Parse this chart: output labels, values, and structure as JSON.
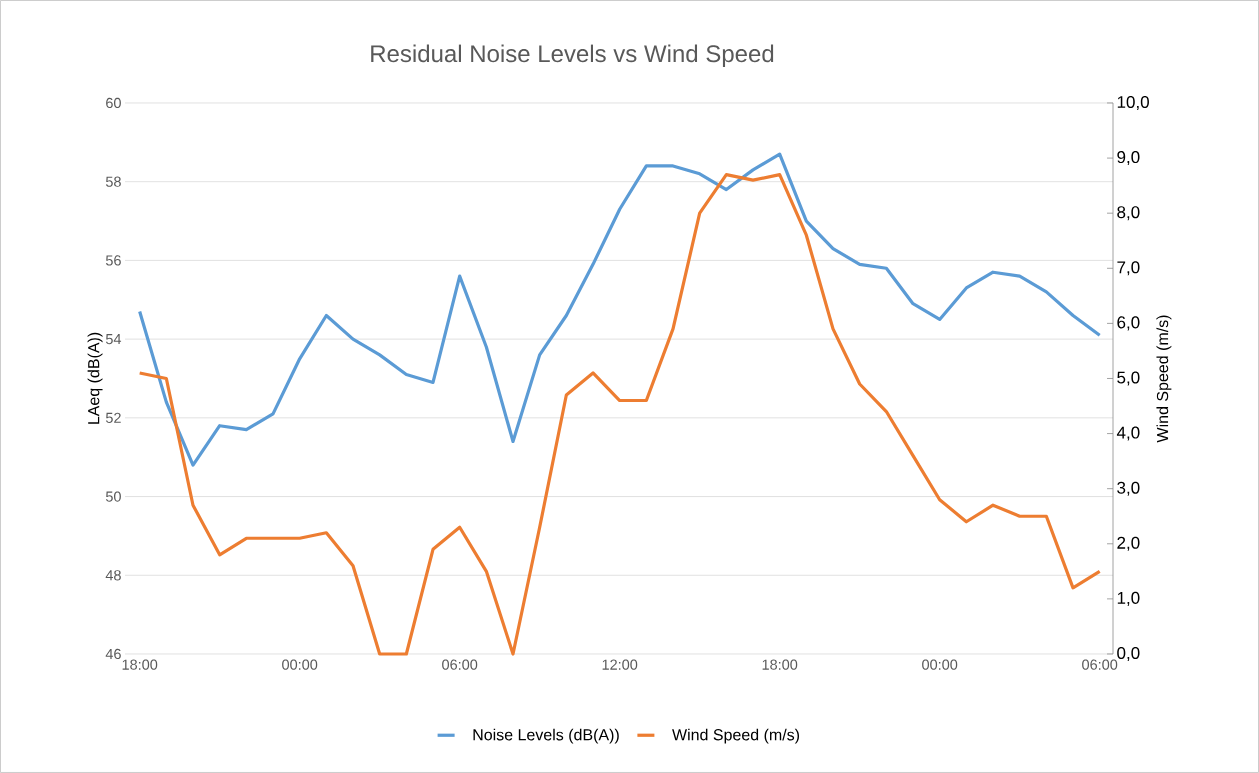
{
  "chart_data": {
    "type": "line",
    "title": "Residual Noise Levels vs Wind Speed",
    "ylabel": "LAeq (dB(A))",
    "y2label": "Wind Speed (m/s)",
    "categories": [
      "18:00",
      null,
      null,
      null,
      null,
      null,
      "00:00",
      null,
      null,
      null,
      null,
      null,
      "06:00",
      null,
      null,
      null,
      null,
      null,
      "12:00",
      null,
      null,
      null,
      null,
      null,
      "18:00",
      null,
      null,
      null,
      null,
      null,
      "00:00",
      null,
      null,
      null,
      null,
      null,
      "06:00"
    ],
    "series": [
      {
        "name": "Noise Levels (dB(A))",
        "color": "#5b9bd5",
        "values": [
          54.7,
          52.4,
          50.8,
          51.8,
          51.7,
          52.1,
          53.5,
          54.6,
          54.0,
          53.6,
          53.1,
          52.9,
          55.6,
          53.8,
          51.4,
          53.6,
          54.6,
          55.9,
          57.3,
          58.4,
          58.4,
          58.2,
          57.8,
          58.3,
          58.7,
          57.0,
          56.3,
          55.9,
          55.8,
          54.9,
          54.5,
          55.3,
          55.7,
          55.6,
          55.2,
          54.6,
          54.1
        ]
      },
      {
        "name": "Wind Speed (m/s)",
        "color": "#ed7d31",
        "axis": "y2",
        "values": [
          5.1,
          5.0,
          2.7,
          1.8,
          2.1,
          2.1,
          2.1,
          2.2,
          1.6,
          0.0,
          0.0,
          1.9,
          2.3,
          1.5,
          0.0,
          2.3,
          4.7,
          5.1,
          4.6,
          4.6,
          5.9,
          8.0,
          8.7,
          8.6,
          8.7,
          7.6,
          5.9,
          4.9,
          4.4,
          3.6,
          2.8,
          2.4,
          2.7,
          2.5,
          2.5,
          1.2,
          1.5
        ]
      }
    ],
    "ylim": [
      46,
      60
    ],
    "yticks": [
      46,
      48,
      50,
      52,
      54,
      56,
      58,
      60
    ],
    "y2lim": [
      0,
      10
    ],
    "y2ticks": [
      {
        "value": 0,
        "label": "0,0"
      },
      {
        "value": 1,
        "label": "1,0"
      },
      {
        "value": 2,
        "label": "2,0"
      },
      {
        "value": 3,
        "label": "3,0"
      },
      {
        "value": 4,
        "label": "4,0"
      },
      {
        "value": 5,
        "label": "5,0"
      },
      {
        "value": 6,
        "label": "6,0"
      },
      {
        "value": 7,
        "label": "7,0"
      },
      {
        "value": 8,
        "label": "8,0"
      },
      {
        "value": 9,
        "label": "9,0"
      },
      {
        "value": 10,
        "label": "10,0"
      }
    ],
    "grid": "y",
    "legend": "bottom",
    "line_style": "solid"
  }
}
